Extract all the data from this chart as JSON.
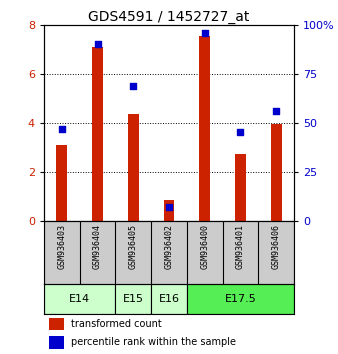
{
  "title": "GDS4591 / 1452727_at",
  "samples": [
    "GSM936403",
    "GSM936404",
    "GSM936405",
    "GSM936402",
    "GSM936400",
    "GSM936401",
    "GSM936406"
  ],
  "red_values": [
    3.1,
    7.1,
    4.35,
    0.85,
    7.55,
    2.75,
    3.95
  ],
  "blue_values_scaled": [
    3.75,
    7.2,
    5.5,
    0.6,
    7.65,
    3.65,
    4.5
  ],
  "bar_color": "#cc2200",
  "dot_color": "#0000cc",
  "ylim_left": [
    0,
    8
  ],
  "ylim_right": [
    0,
    100
  ],
  "yticks_left": [
    0,
    2,
    4,
    6,
    8
  ],
  "ytick_labels_left": [
    "0",
    "2",
    "4",
    "6",
    "8"
  ],
  "yticks_right": [
    0,
    25,
    50,
    75,
    100
  ],
  "ytick_labels_right": [
    "0",
    "25",
    "50",
    "75",
    "100%"
  ],
  "groups": [
    {
      "label": "E14",
      "indices": [
        0,
        1
      ],
      "color": "#ccffcc"
    },
    {
      "label": "E15",
      "indices": [
        2
      ],
      "color": "#ccffcc"
    },
    {
      "label": "E16",
      "indices": [
        3
      ],
      "color": "#ccffcc"
    },
    {
      "label": "E17.5",
      "indices": [
        4,
        5,
        6
      ],
      "color": "#55ee55"
    }
  ],
  "legend_red": "transformed count",
  "legend_blue": "percentile rank within the sample",
  "background_color": "#ffffff",
  "bar_width": 0.3,
  "dot_size": 18
}
